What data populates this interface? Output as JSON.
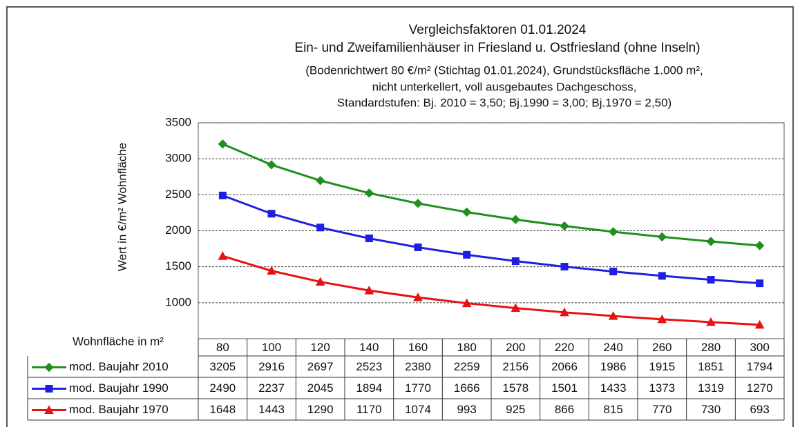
{
  "chart_data": {
    "type": "line",
    "title": [
      "Vergleichsfaktoren 01.01.2024",
      "Ein- und Zweifamilienhäuser in Friesland u. Ostfriesland (ohne Inseln)"
    ],
    "subtitle": [
      "(Bodenrichtwert 80 €/m² (Stichtag 01.01.2024), Grundstücksfläche  1.000 m²,",
      "nicht unterkellert,  voll ausgebautes  Dachgeschoss,",
      "Standardstufen:  Bj. 2010 = 3,50; Bj.1990 = 3,00; Bj.1970 = 2,50)"
    ],
    "y_label": "Wert in €/m²  Wohnfläche",
    "x_label": "Wohnfläche in m²",
    "categories": [
      80,
      100,
      120,
      140,
      160,
      180,
      200,
      220,
      240,
      260,
      280,
      300
    ],
    "series": [
      {
        "name": "mod. Baujahr 2010",
        "color": "#1f8f1f",
        "marker": "diamond",
        "values": [
          3205,
          2916,
          2697,
          2523,
          2380,
          2259,
          2156,
          2066,
          1986,
          1915,
          1851,
          1794
        ]
      },
      {
        "name": "mod. Baujahr 1990",
        "color": "#1f1fe0",
        "marker": "square",
        "values": [
          2490,
          2237,
          2045,
          1894,
          1770,
          1666,
          1578,
          1501,
          1433,
          1373,
          1319,
          1270
        ]
      },
      {
        "name": "mod. Baujahr 1970",
        "color": "#e81010",
        "marker": "triangle",
        "values": [
          1648,
          1443,
          1290,
          1170,
          1074,
          993,
          925,
          866,
          815,
          770,
          730,
          693
        ]
      }
    ],
    "ylim": [
      500,
      3500
    ],
    "yticks": [
      1000,
      1500,
      2000,
      2500,
      3000,
      3500
    ],
    "grid": true
  }
}
